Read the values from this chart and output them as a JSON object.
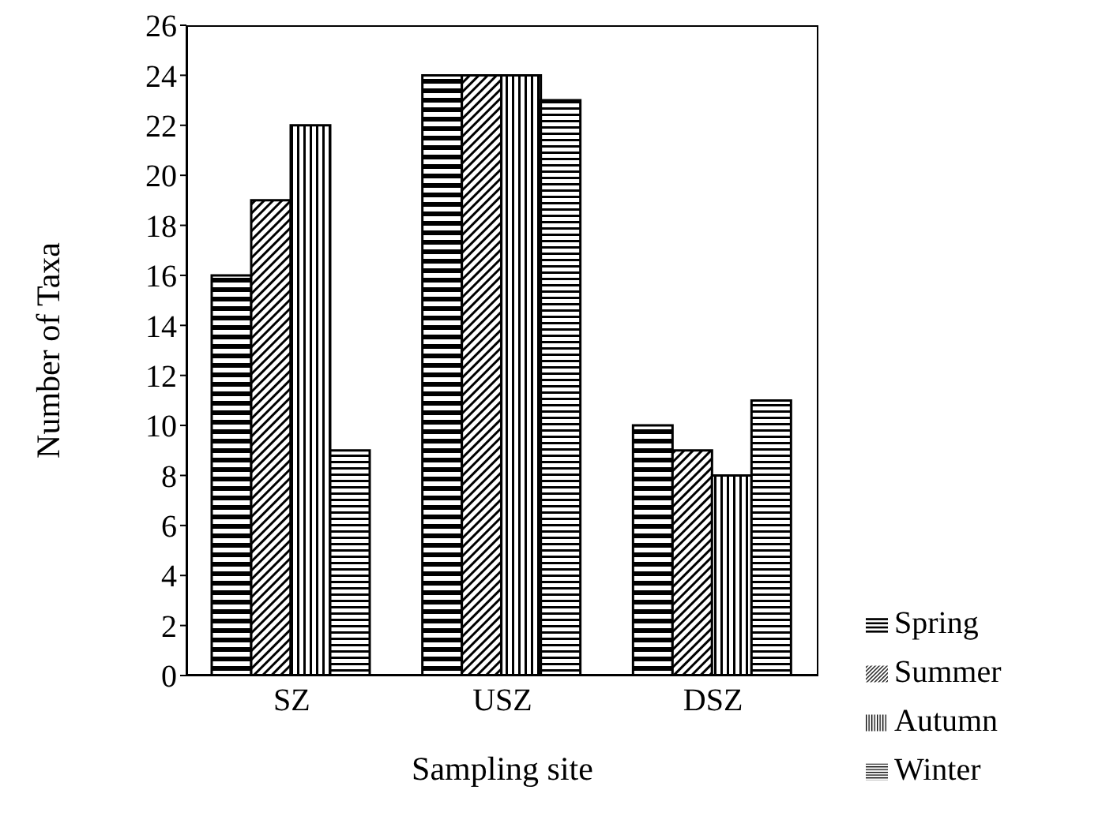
{
  "chart_data": {
    "type": "bar",
    "xlabel": "Sampling site",
    "ylabel": "Number of Taxa",
    "categories": [
      "SZ",
      "USZ",
      "DSZ"
    ],
    "series": [
      {
        "name": "Spring",
        "color": "#000000",
        "values": [
          16,
          24,
          10
        ]
      },
      {
        "name": "Summer",
        "color": "#000000",
        "values": [
          19,
          24,
          9
        ]
      },
      {
        "name": "Autumn",
        "color": "#000000",
        "values": [
          22,
          24,
          8
        ]
      },
      {
        "name": "Winter",
        "color": "#000000",
        "values": [
          9,
          23,
          11
        ]
      }
    ],
    "ylim": [
      0,
      26
    ],
    "yticks": [
      0,
      2,
      4,
      6,
      8,
      10,
      12,
      14,
      16,
      18,
      20,
      22,
      24,
      26
    ],
    "grid": false,
    "legend": "bottom right"
  }
}
